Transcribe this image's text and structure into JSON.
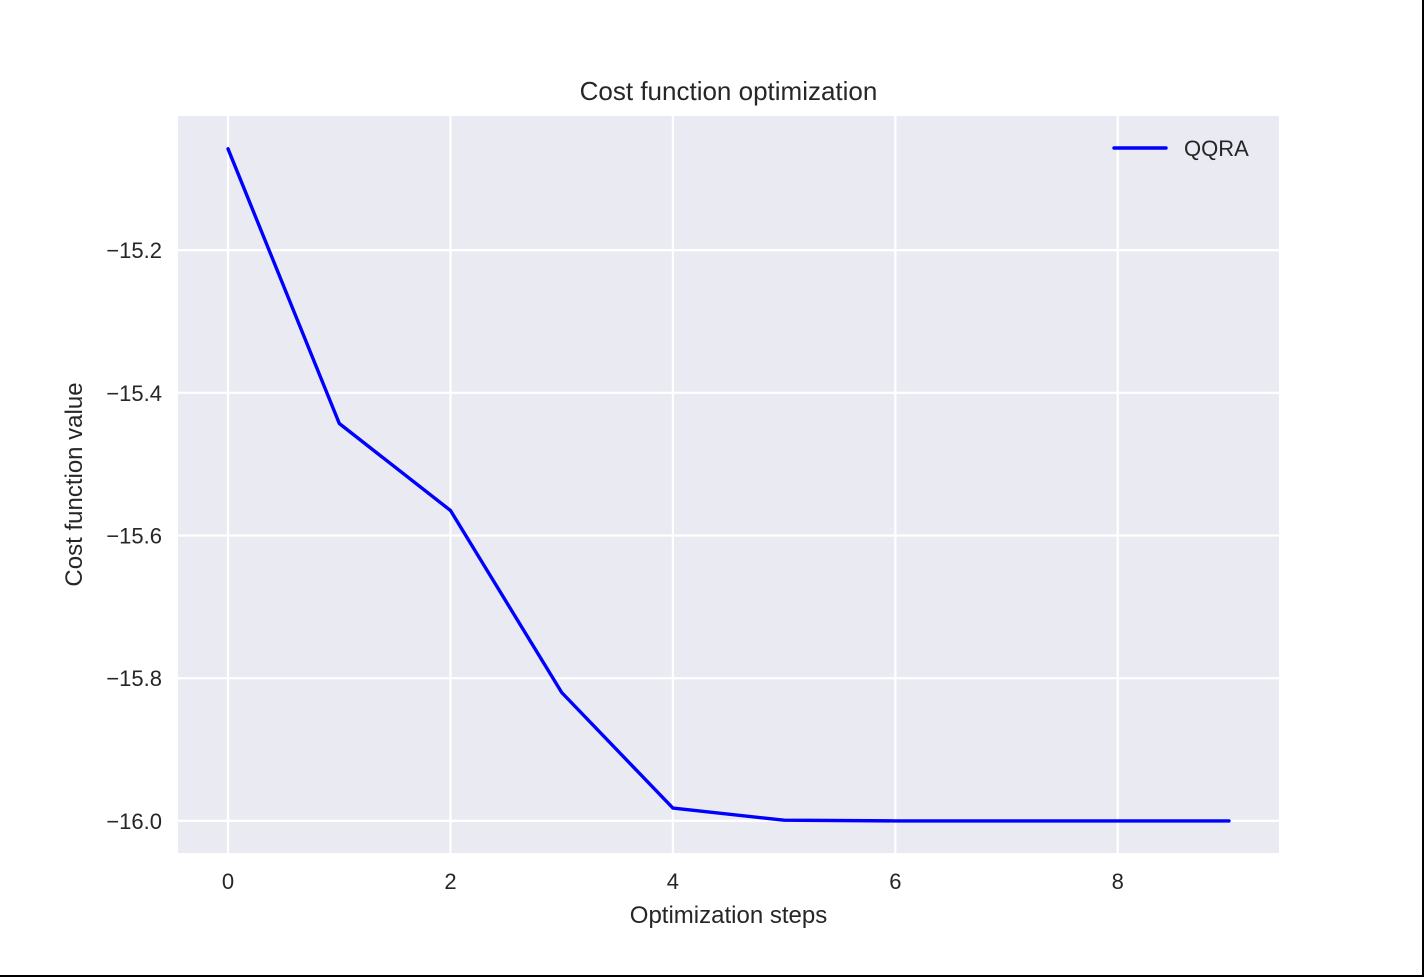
{
  "chart_data": {
    "type": "line",
    "title": "Cost function optimization",
    "xlabel": "Optimization steps",
    "ylabel": "Cost function value",
    "x": [
      0,
      1,
      2,
      3,
      4,
      5,
      6,
      7,
      8,
      9
    ],
    "series": [
      {
        "name": "QQRA",
        "color": "#0000ff",
        "values": [
          -15.058,
          -15.443,
          -15.565,
          -15.82,
          -15.982,
          -15.999,
          -16.0,
          -16.0,
          -16.0,
          -16.0
        ]
      }
    ],
    "xlim": [
      -0.45,
      9.45
    ],
    "ylim": [
      -16.045,
      -15.012
    ],
    "xticks": [
      0,
      2,
      4,
      6,
      8
    ],
    "xtick_labels": [
      "0",
      "2",
      "4",
      "6",
      "8"
    ],
    "yticks": [
      -15.2,
      -15.4,
      -15.6,
      -15.8,
      -16.0
    ],
    "ytick_labels": [
      "−15.2",
      "−15.4",
      "−15.6",
      "−15.8",
      "−16.0"
    ],
    "grid": true,
    "legend_position": "top-right",
    "background_color": "#eaeaf2",
    "grid_color": "#ffffff"
  }
}
